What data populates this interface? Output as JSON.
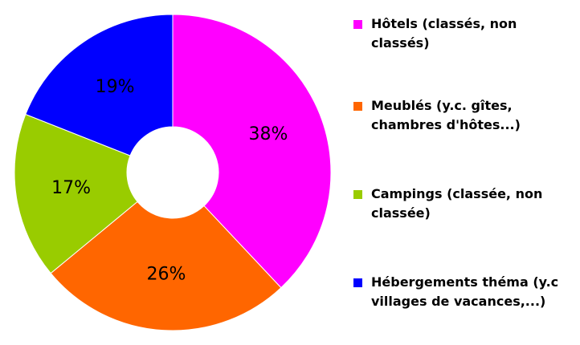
{
  "chart_data": {
    "type": "donut",
    "categories": [
      "Hôtels (classés, non classés)",
      "Meublés (y.c. gîtes, chambres d'hôtes...)",
      "Campings (classée, non classée)",
      "Hébergements théma (y.c villages de vacances,...)"
    ],
    "values": [
      38,
      26,
      17,
      19
    ],
    "value_labels": [
      "38%",
      "26%",
      "17%",
      "19%"
    ],
    "colors": [
      "#ff00ff",
      "#ff6600",
      "#99cc00",
      "#0000ff"
    ],
    "legend": "right"
  }
}
